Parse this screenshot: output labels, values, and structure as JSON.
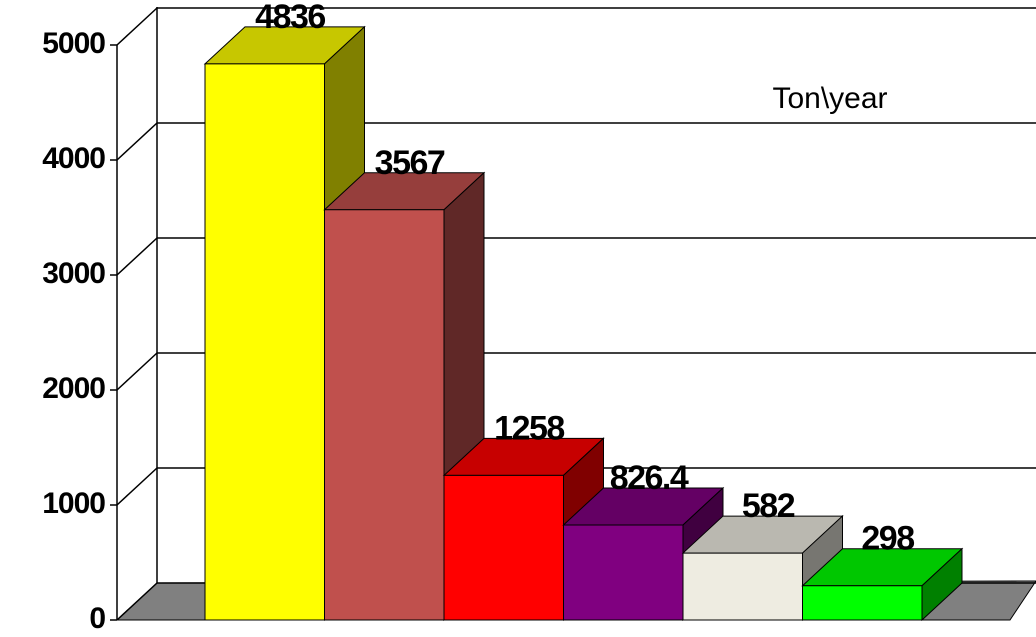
{
  "chart_data": {
    "type": "bar3d",
    "annotation": "Ton\\year",
    "series": [
      {
        "values": [
          4836,
          3567,
          1258,
          826.4,
          582,
          298
        ],
        "colors": [
          "#ffff00",
          "#c0504d",
          "#ff0000",
          "#800080",
          "#eeece1",
          "#00ff00"
        ]
      }
    ],
    "ylim": [
      0,
      5000
    ],
    "yticks": [
      0,
      1000,
      2000,
      3000,
      4000,
      5000
    ],
    "grid": true
  }
}
